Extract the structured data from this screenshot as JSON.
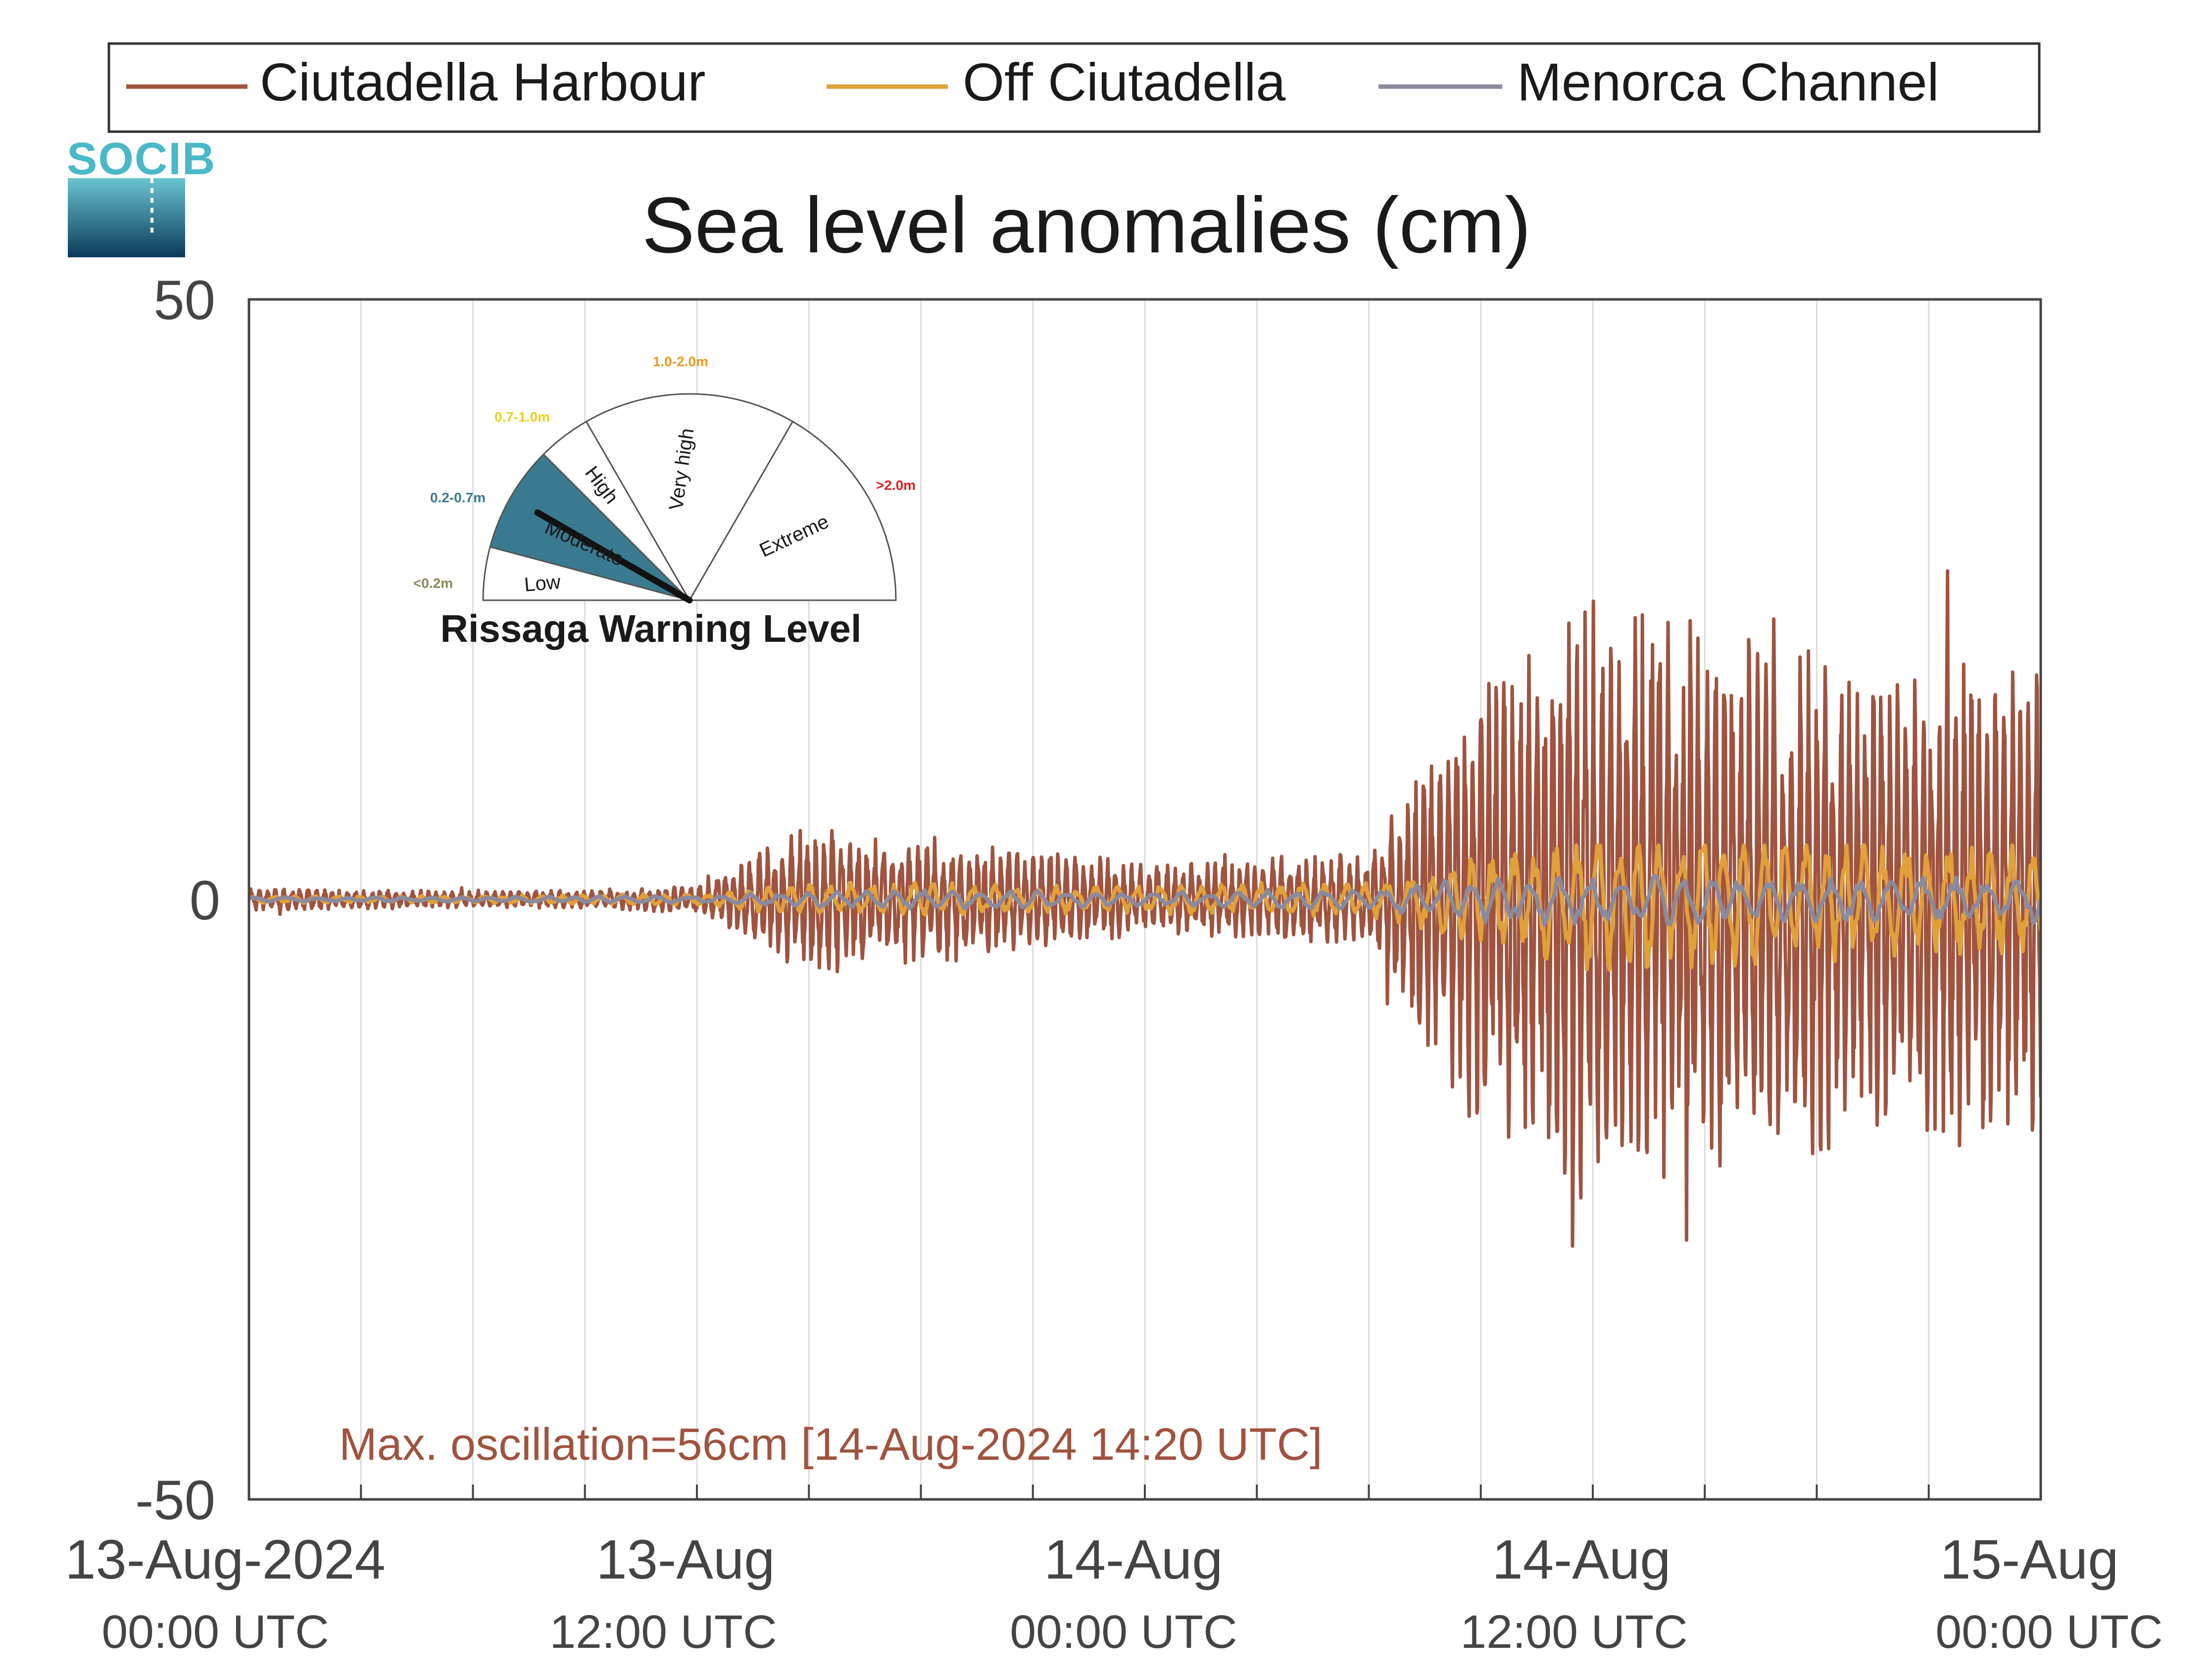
{
  "chart_data": {
    "type": "line",
    "title": "Sea level anomalies (cm)",
    "xlabel": "",
    "ylabel": "",
    "ylim": [
      -50,
      50
    ],
    "y_ticks": [
      -50,
      0,
      50
    ],
    "xlim": [
      "2024-08-13 00:00 UTC",
      "2024-08-15 00:00 UTC"
    ],
    "x_tick_labels": [
      {
        "date": "13-Aug-2024",
        "time": "00:00 UTC"
      },
      {
        "date": "13-Aug",
        "time": "12:00 UTC"
      },
      {
        "date": "14-Aug",
        "time": "00:00 UTC"
      },
      {
        "date": "14-Aug",
        "time": "12:00 UTC"
      },
      {
        "date": "15-Aug",
        "time": "00:00 UTC"
      }
    ],
    "vertical_grid": true,
    "horizontal_grid": false,
    "legend_position": "top",
    "series": [
      {
        "name": "Ciutadella Harbour",
        "color": "#a0533f",
        "x_hours": [
          0,
          3,
          6,
          9,
          12,
          15,
          18,
          21,
          24,
          27,
          30,
          33,
          36,
          39,
          42,
          45,
          48
        ],
        "amplitude_envelope_cm": [
          1.0,
          0.8,
          0.7,
          0.8,
          1.2,
          6.5,
          5.5,
          4.5,
          3.0,
          3.5,
          4.0,
          20.0,
          26.0,
          24.0,
          22.0,
          21.0,
          20.0
        ],
        "max": 28.5,
        "min": -29.0
      },
      {
        "name": "Off Ciutadella",
        "color": "#e0a03a",
        "x_hours": [
          0,
          3,
          6,
          9,
          12,
          15,
          18,
          21,
          24,
          27,
          30,
          33,
          36,
          39,
          42,
          45,
          48
        ],
        "amplitude_envelope_cm": [
          0.3,
          0.3,
          0.3,
          0.4,
          0.5,
          1.5,
          1.5,
          1.2,
          1.2,
          1.5,
          1.5,
          4.0,
          6.5,
          6.0,
          5.5,
          5.0,
          5.0
        ],
        "max": 4.5,
        "min": -7.5
      },
      {
        "name": "Menorca Channel",
        "color": "#8a8a9e",
        "x_hours": [
          0,
          3,
          6,
          9,
          12,
          15,
          18,
          21,
          24,
          27,
          30,
          33,
          36,
          39,
          42,
          45,
          48
        ],
        "amplitude_envelope_cm": [
          0.2,
          0.2,
          0.2,
          0.3,
          0.3,
          0.7,
          0.8,
          0.8,
          0.6,
          0.8,
          0.9,
          2.0,
          2.5,
          2.0,
          2.0,
          2.0,
          2.0
        ],
        "max": 2.5,
        "min": -3.0
      }
    ],
    "annotation": "Max. oscillation=56cm [14-Aug-2024 14:20 UTC]",
    "annotation_color": "#a0533f"
  },
  "logo": {
    "text": "SOCIB",
    "color": "#4ab8c8"
  },
  "gauge": {
    "title": "Rissaga Warning Level",
    "current_level": "Moderate",
    "segments": [
      {
        "label": "Low",
        "range": "<0.2m",
        "range_color": "#8a8a5a",
        "active": false
      },
      {
        "label": "Moderate",
        "range": "0.2-0.7m",
        "range_color": "#3a7a90",
        "active": true
      },
      {
        "label": "High",
        "range": "0.7-1.0m",
        "range_color": "#e8d020",
        "active": false
      },
      {
        "label": "Very high",
        "range": "1.0-2.0m",
        "range_color": "#e89a20",
        "active": false
      },
      {
        "label": "Extreme",
        "range": ">2.0m",
        "range_color": "#e02020",
        "active": false
      }
    ],
    "active_color": "#3a7a90"
  }
}
